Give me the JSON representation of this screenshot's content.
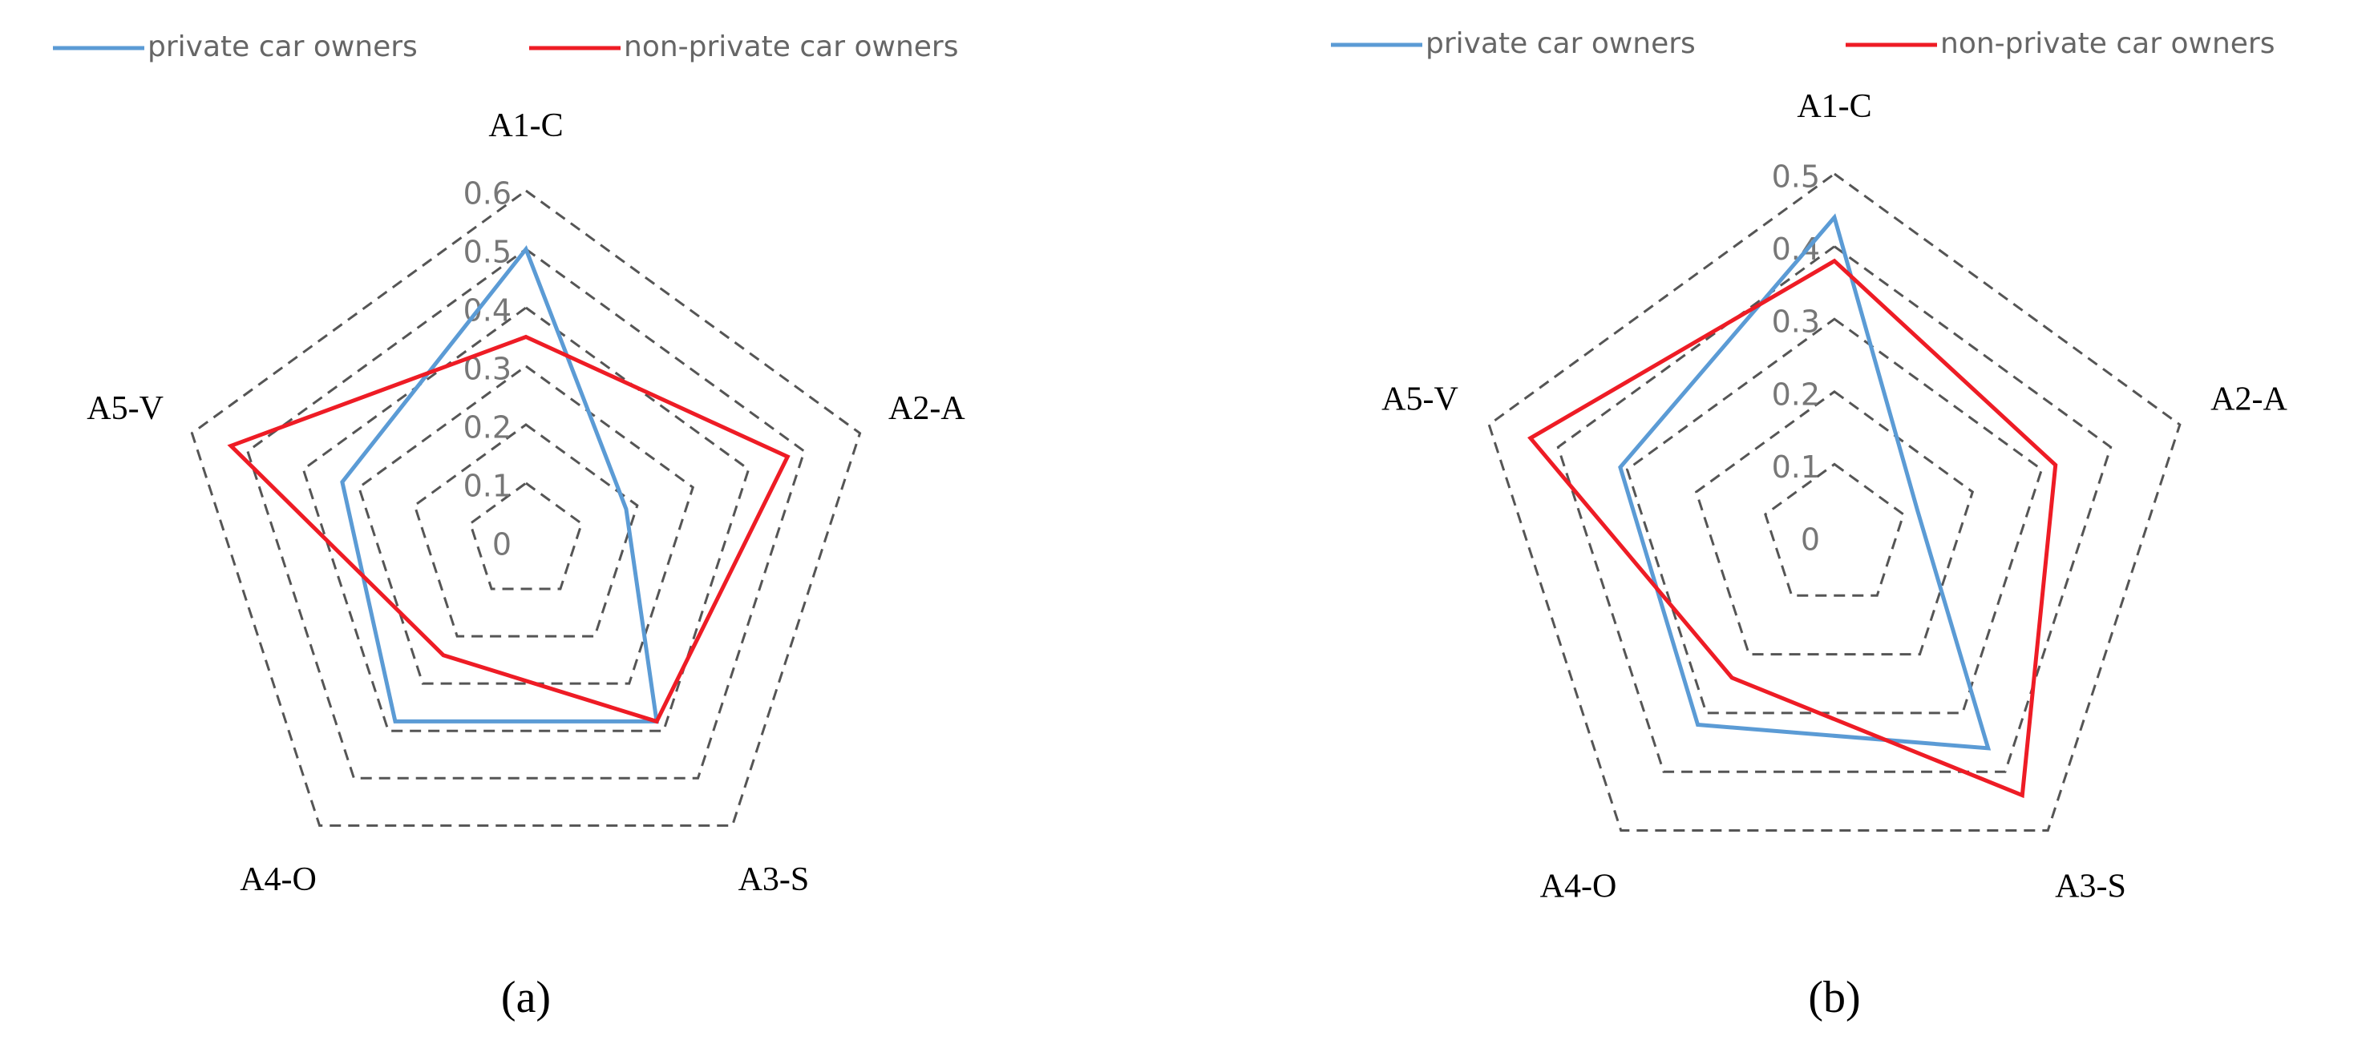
{
  "chart_data": [
    {
      "type": "radar",
      "caption": "(a)",
      "categories": [
        "A1-C",
        "A2-A",
        "A3-S",
        "A4-O",
        "A5-V"
      ],
      "series": [
        {
          "name": "private car owners",
          "color": "#5b9bd5",
          "values": [
            0.5,
            0.18,
            0.38,
            0.38,
            0.33
          ]
        },
        {
          "name": "non-private car owners",
          "color": "#ee1c25",
          "values": [
            0.35,
            0.47,
            0.38,
            0.24,
            0.53
          ]
        }
      ],
      "ylim": [
        0,
        0.6
      ],
      "yticks": [
        0,
        0.1,
        0.2,
        0.3,
        0.4,
        0.5,
        0.6
      ],
      "grid": true
    },
    {
      "type": "radar",
      "caption": "(b)",
      "categories": [
        "A1-C",
        "A2-A",
        "A3-S",
        "A4-O",
        "A5-V"
      ],
      "series": [
        {
          "name": "private car owners",
          "color": "#5b9bd5",
          "values": [
            0.44,
            0.12,
            0.36,
            0.32,
            0.31
          ]
        },
        {
          "name": "non-private car owners",
          "color": "#ee1c25",
          "values": [
            0.38,
            0.32,
            0.44,
            0.24,
            0.44
          ]
        }
      ],
      "ylim": [
        0,
        0.5
      ],
      "yticks": [
        0,
        0.1,
        0.2,
        0.3,
        0.4,
        0.5
      ],
      "grid": true
    }
  ]
}
